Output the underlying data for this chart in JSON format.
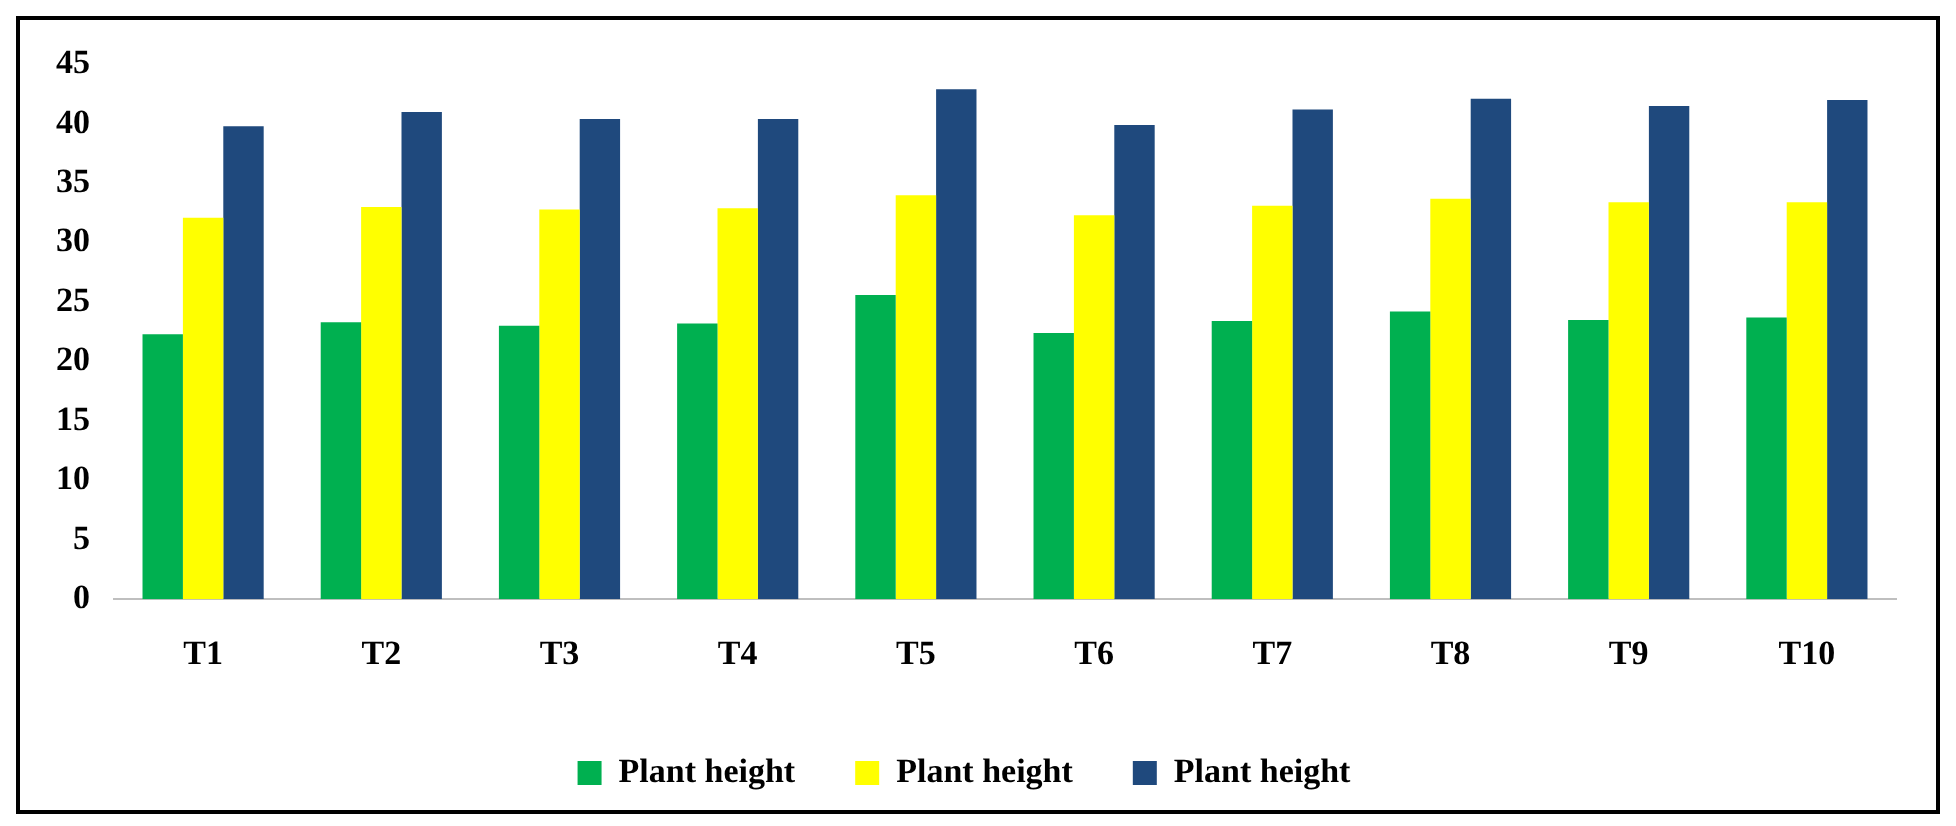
{
  "chart_data": {
    "type": "bar",
    "categories": [
      "T1",
      "T2",
      "T3",
      "T4",
      "T5",
      "T6",
      "T7",
      "T8",
      "T9",
      "T10"
    ],
    "series": [
      {
        "name": "Plant height",
        "color": "#00b050",
        "values": [
          22.3,
          23.3,
          23.0,
          23.2,
          25.6,
          22.4,
          23.4,
          24.2,
          23.5,
          23.7
        ]
      },
      {
        "name": "Plant height",
        "color": "#ffff00",
        "values": [
          32.1,
          33.0,
          32.8,
          32.9,
          34.0,
          32.3,
          33.1,
          33.7,
          33.4,
          33.4
        ]
      },
      {
        "name": "Plant height",
        "color": "#1f497d",
        "values": [
          39.8,
          41.0,
          40.4,
          40.4,
          42.9,
          39.9,
          41.2,
          42.1,
          41.5,
          42.0
        ]
      }
    ],
    "ylim": [
      0,
      45
    ],
    "yticks": [
      0,
      5,
      10,
      15,
      20,
      25,
      30,
      35,
      40,
      45
    ],
    "grid": false,
    "legend": "bottom"
  }
}
